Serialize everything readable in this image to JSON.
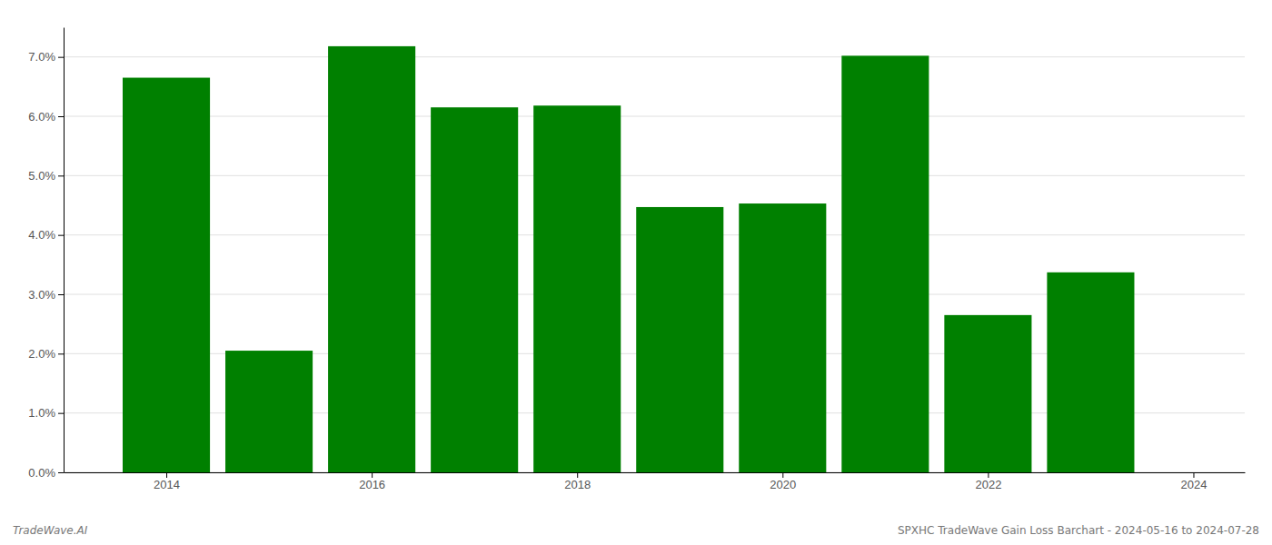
{
  "chart_data": {
    "type": "bar",
    "x": [
      2014,
      2015,
      2016,
      2017,
      2018,
      2019,
      2020,
      2021,
      2022,
      2023
    ],
    "values": [
      0.0665,
      0.0205,
      0.0718,
      0.0615,
      0.0618,
      0.0447,
      0.0453,
      0.0702,
      0.0265,
      0.0337
    ],
    "color": "#008000",
    "xlim": [
      2013.0,
      2024.5
    ],
    "xticks": [
      2014,
      2016,
      2018,
      2020,
      2022,
      2024
    ],
    "ylim": [
      0,
      0.075
    ],
    "yticks": [
      {
        "value": 0.0,
        "label": "0.0%"
      },
      {
        "value": 0.01,
        "label": "1.0%"
      },
      {
        "value": 0.02,
        "label": "2.0%"
      },
      {
        "value": 0.03,
        "label": "3.0%"
      },
      {
        "value": 0.04,
        "label": "4.0%"
      },
      {
        "value": 0.05,
        "label": "5.0%"
      },
      {
        "value": 0.06,
        "label": "6.0%"
      },
      {
        "value": 0.07,
        "label": "7.0%"
      }
    ],
    "grid": true,
    "annotations": [
      "TradeWave.AI",
      "SPXHC TradeWave Gain Loss Barchart - 2024-05-16 to 2024-07-28"
    ]
  }
}
